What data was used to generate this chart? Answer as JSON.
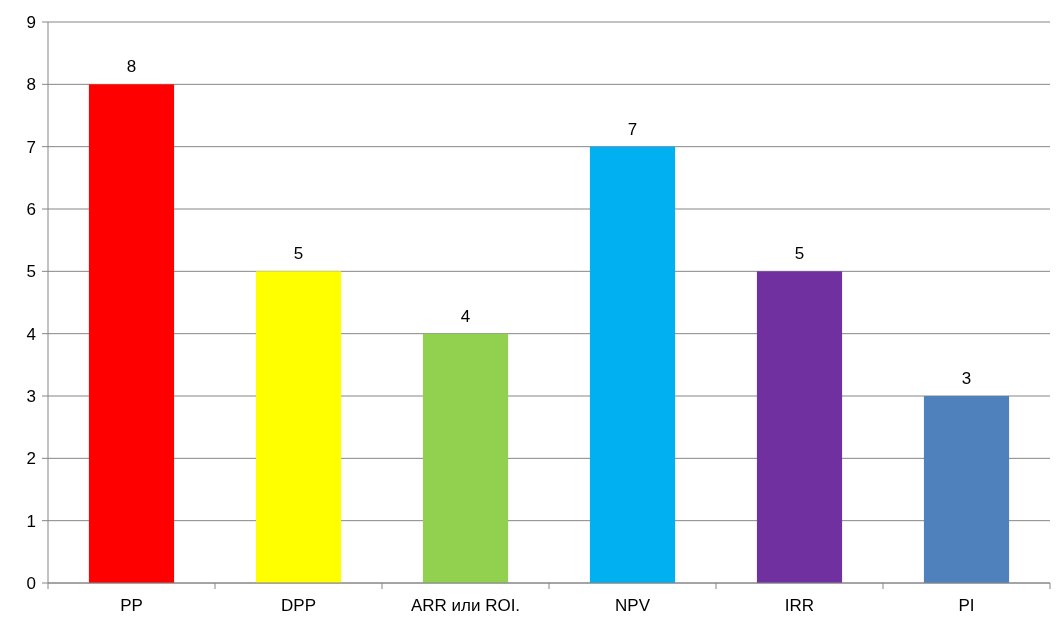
{
  "chart_data": {
    "type": "bar",
    "categories": [
      "PP",
      "DPP",
      "ARR или ROI.",
      "NPV",
      "IRR",
      "PI"
    ],
    "values": [
      8,
      5,
      4,
      7,
      5,
      3
    ],
    "colors": [
      "#ff0000",
      "#ffff00",
      "#92d050",
      "#00b0f0",
      "#7030a0",
      "#4f81bd"
    ],
    "ylim": [
      0,
      9
    ],
    "yticks": [
      0,
      1,
      2,
      3,
      4,
      5,
      6,
      7,
      8,
      9
    ],
    "grid": "y",
    "data_labels": true
  }
}
